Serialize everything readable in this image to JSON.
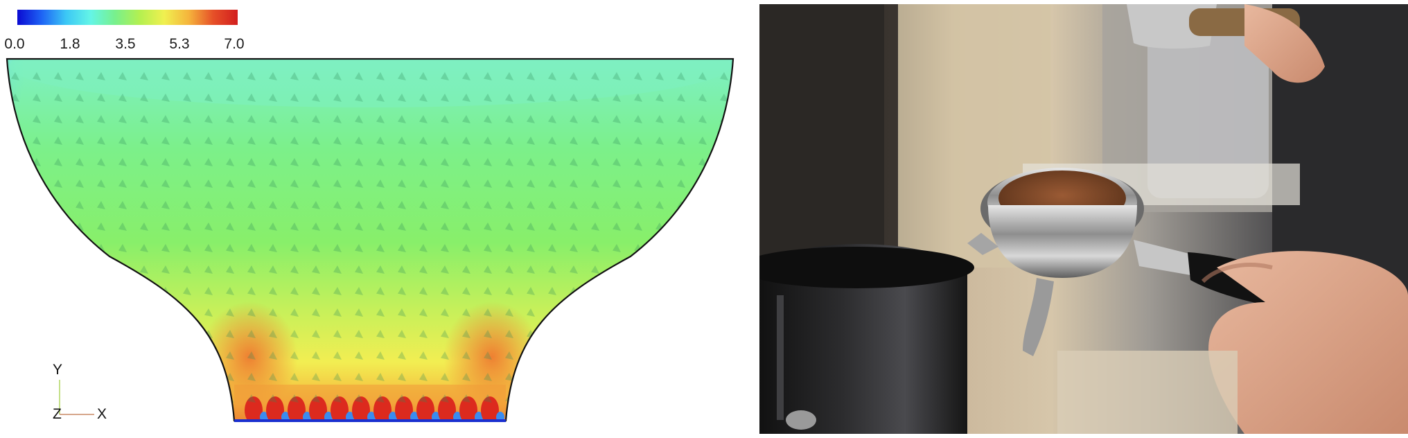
{
  "simulation": {
    "colorbar": {
      "ticks": [
        "0.0",
        "1.8",
        "3.5",
        "5.3",
        "7.0"
      ],
      "range": [
        0.0,
        7.0
      ],
      "colors": [
        "#0a0ad2",
        "#1e64f5",
        "#3cc8f5",
        "#64f5e6",
        "#78f08c",
        "#b4f050",
        "#f0f050",
        "#f5b43c",
        "#e65028",
        "#d21e1e"
      ]
    },
    "axes": {
      "y_label": "Y",
      "z_label": "Z",
      "x_label": "X"
    },
    "vector_glyph": "cone-arrow-icon"
  },
  "photo": {
    "subject": "espresso-portafilter-photo",
    "palette": {
      "background_dark": "#1d1a17",
      "background_warm": "#c9b89a",
      "metal": "#b8b8b8",
      "coffee": "#7a4a2a",
      "skin": "#d9a48a",
      "handle": "#151515"
    }
  }
}
